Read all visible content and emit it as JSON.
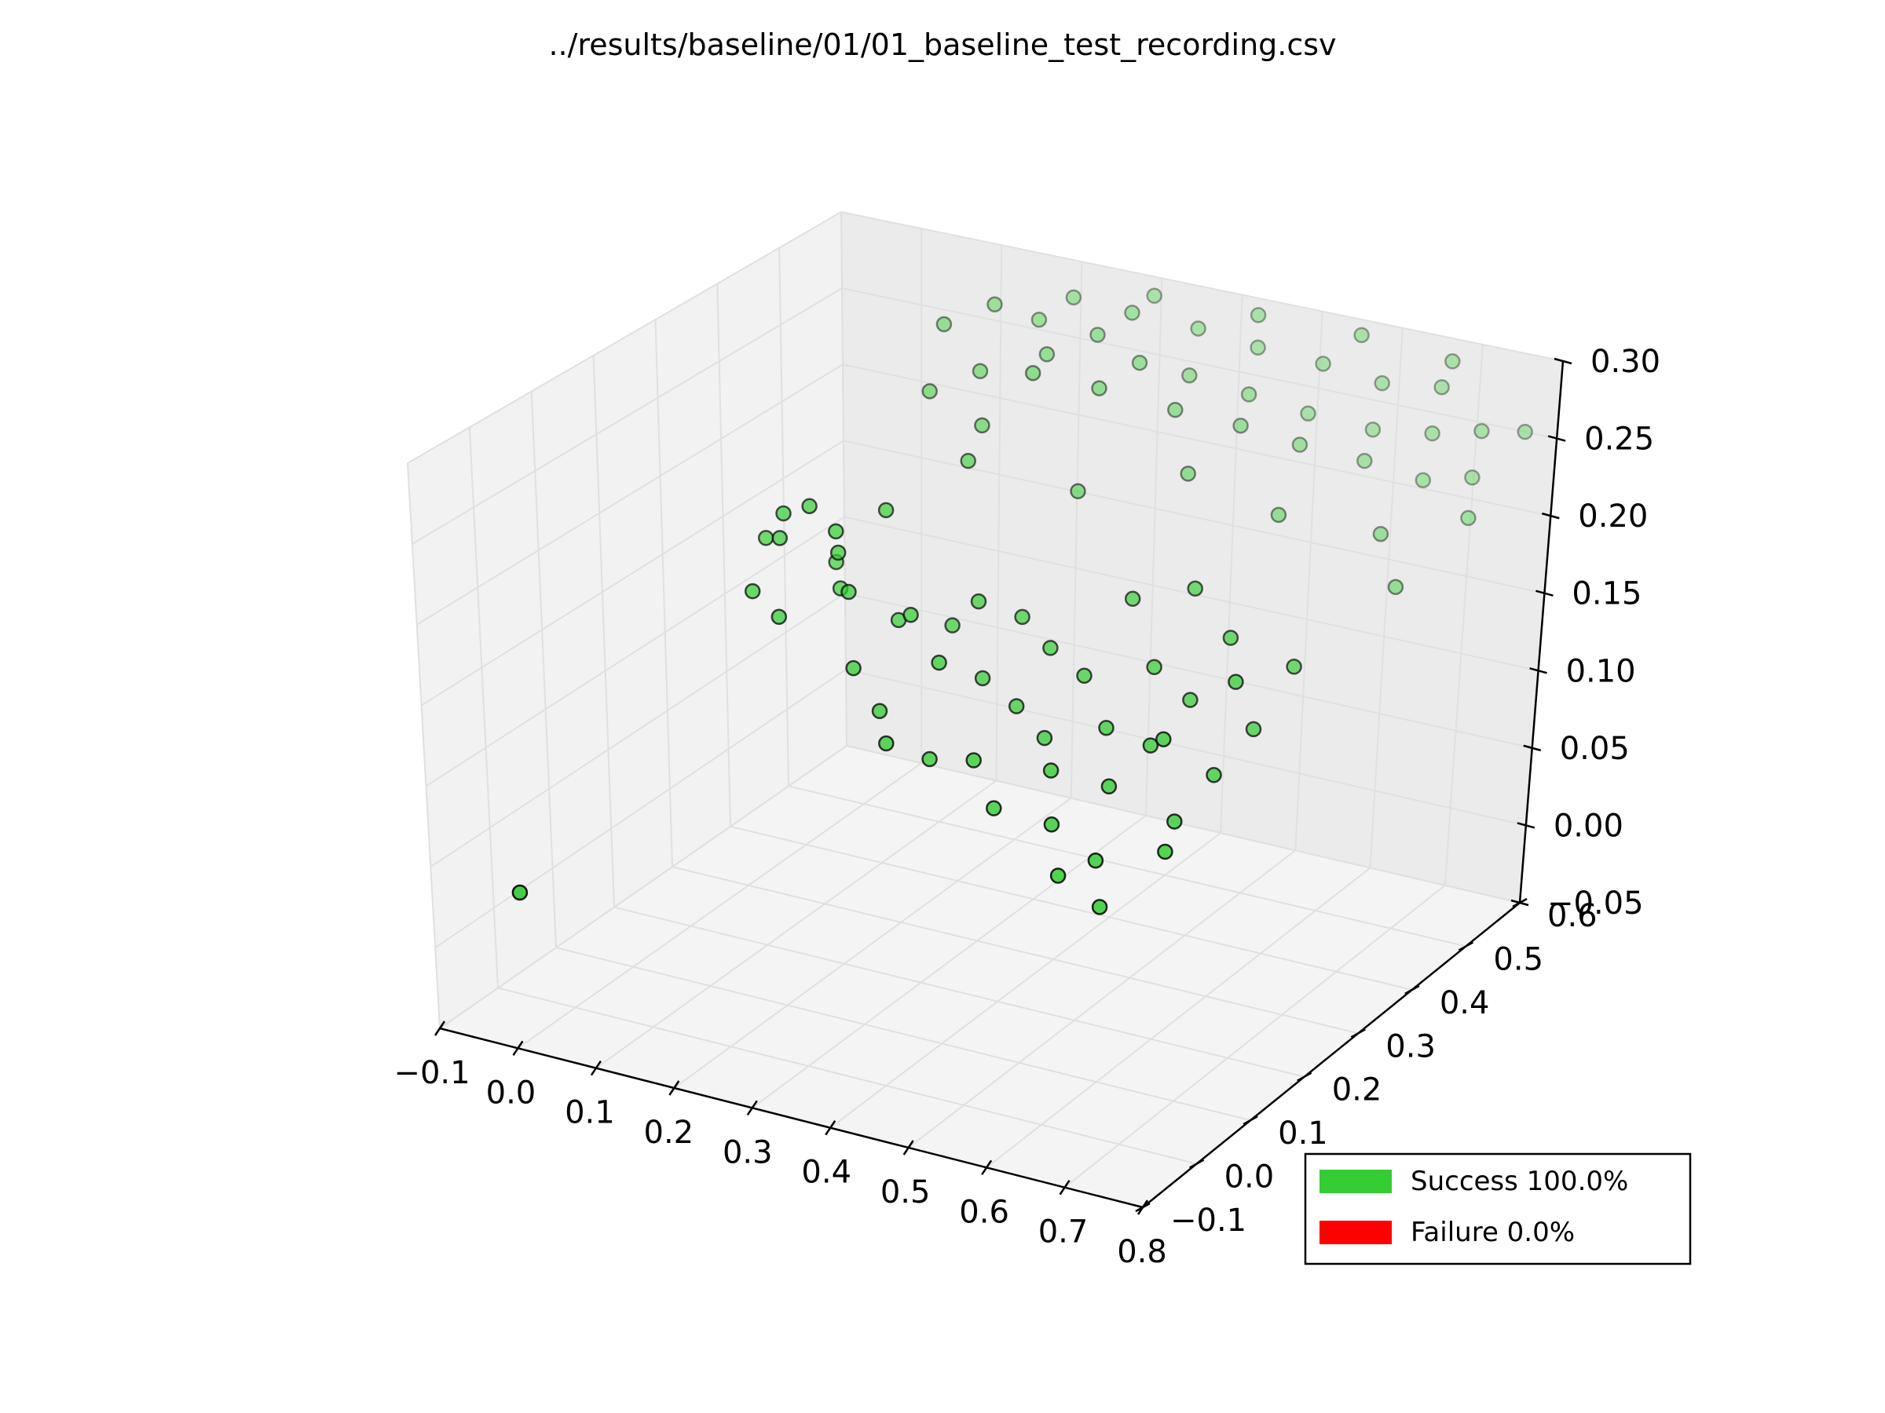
{
  "chart_data": {
    "type": "scatter",
    "projection": "3d",
    "title": "../results/baseline/01/01_baseline_test_recording.csv",
    "x_ticks": [
      "−0.1",
      "0.0",
      "0.1",
      "0.2",
      "0.3",
      "0.4",
      "0.5",
      "0.6",
      "0.7",
      "0.8"
    ],
    "y_ticks": [
      "−0.1",
      "0.0",
      "0.1",
      "0.2",
      "0.3",
      "0.4",
      "0.5",
      "0.6"
    ],
    "z_ticks": [
      "−0.05",
      "0.00",
      "0.05",
      "0.10",
      "0.15",
      "0.20",
      "0.25",
      "0.30"
    ],
    "xlim": [
      -0.1,
      0.8
    ],
    "ylim": [
      -0.1,
      0.6
    ],
    "zlim": [
      -0.05,
      0.3
    ],
    "grid": true,
    "point_color": "#33cc33",
    "legend": {
      "placement": "lower-right",
      "entries": [
        {
          "label": "Success 100.0%",
          "color": "#33cc33"
        },
        {
          "label": "Failure 0.0%",
          "color": "#ff0000"
        }
      ]
    },
    "points": [
      [
        -0.05,
        -0.02,
        0.02
      ],
      [
        0.13,
        0.2,
        0.22
      ],
      [
        0.17,
        0.19,
        0.23
      ],
      [
        0.21,
        0.18,
        0.22
      ],
      [
        0.25,
        0.21,
        0.23
      ],
      [
        0.1,
        0.21,
        0.2
      ],
      [
        0.14,
        0.18,
        0.21
      ],
      [
        0.18,
        0.22,
        0.19
      ],
      [
        0.22,
        0.17,
        0.21
      ],
      [
        0.12,
        0.16,
        0.18
      ],
      [
        0.16,
        0.15,
        0.17
      ],
      [
        0.2,
        0.2,
        0.18
      ],
      [
        0.24,
        0.16,
        0.19
      ],
      [
        0.28,
        0.19,
        0.17
      ],
      [
        0.26,
        0.14,
        0.15
      ],
      [
        0.31,
        0.17,
        0.18
      ],
      [
        0.34,
        0.2,
        0.17
      ],
      [
        0.3,
        0.13,
        0.13
      ],
      [
        0.36,
        0.15,
        0.16
      ],
      [
        0.38,
        0.19,
        0.19
      ],
      [
        0.33,
        0.1,
        0.12
      ],
      [
        0.4,
        0.17,
        0.15
      ],
      [
        0.42,
        0.21,
        0.18
      ],
      [
        0.37,
        0.12,
        0.11
      ],
      [
        0.45,
        0.16,
        0.14
      ],
      [
        0.47,
        0.19,
        0.17
      ],
      [
        0.44,
        0.1,
        0.12
      ],
      [
        0.5,
        0.14,
        0.13
      ],
      [
        0.52,
        0.18,
        0.16
      ],
      [
        0.55,
        0.22,
        0.2
      ],
      [
        0.48,
        0.08,
        0.1
      ],
      [
        0.53,
        0.11,
        0.12
      ],
      [
        0.57,
        0.15,
        0.14
      ],
      [
        0.6,
        0.19,
        0.17
      ],
      [
        0.62,
        0.23,
        0.21
      ],
      [
        0.56,
        0.07,
        0.1
      ],
      [
        0.61,
        0.1,
        0.12
      ],
      [
        0.64,
        0.13,
        0.14
      ],
      [
        0.66,
        0.17,
        0.16
      ],
      [
        0.68,
        0.21,
        0.19
      ],
      [
        0.63,
        0.05,
        0.09
      ],
      [
        0.7,
        0.09,
        0.11
      ],
      [
        0.72,
        0.13,
        0.13
      ],
      [
        0.74,
        0.17,
        0.15
      ],
      [
        0.76,
        0.21,
        0.18
      ],
      [
        0.59,
        0.04,
        0.08
      ],
      [
        0.65,
        0.03,
        0.07
      ],
      [
        0.71,
        0.06,
        0.1
      ],
      [
        0.67,
        0.11,
        0.15
      ],
      [
        0.73,
        0.15,
        0.18
      ],
      [
        0.2,
        0.35,
        0.27
      ],
      [
        0.24,
        0.38,
        0.28
      ],
      [
        0.28,
        0.33,
        0.26
      ],
      [
        0.32,
        0.36,
        0.29
      ],
      [
        0.18,
        0.4,
        0.3
      ],
      [
        0.22,
        0.43,
        0.31
      ],
      [
        0.26,
        0.45,
        0.3
      ],
      [
        0.3,
        0.41,
        0.29
      ],
      [
        0.34,
        0.44,
        0.3
      ],
      [
        0.38,
        0.39,
        0.28
      ],
      [
        0.36,
        0.47,
        0.31
      ],
      [
        0.4,
        0.43,
        0.29
      ],
      [
        0.42,
        0.5,
        0.3
      ],
      [
        0.44,
        0.46,
        0.28
      ],
      [
        0.46,
        0.41,
        0.27
      ],
      [
        0.48,
        0.52,
        0.29
      ],
      [
        0.5,
        0.48,
        0.27
      ],
      [
        0.52,
        0.44,
        0.26
      ],
      [
        0.54,
        0.55,
        0.28
      ],
      [
        0.56,
        0.5,
        0.26
      ],
      [
        0.58,
        0.46,
        0.25
      ],
      [
        0.6,
        0.57,
        0.27
      ],
      [
        0.62,
        0.53,
        0.25
      ],
      [
        0.64,
        0.49,
        0.24
      ],
      [
        0.66,
        0.59,
        0.27
      ],
      [
        0.68,
        0.55,
        0.25
      ],
      [
        0.7,
        0.51,
        0.23
      ],
      [
        0.72,
        0.58,
        0.25
      ],
      [
        0.74,
        0.54,
        0.23
      ],
      [
        0.76,
        0.6,
        0.25
      ],
      [
        0.35,
        0.52,
        0.31
      ],
      [
        0.45,
        0.56,
        0.3
      ],
      [
        0.55,
        0.6,
        0.29
      ],
      [
        0.65,
        0.62,
        0.28
      ],
      [
        0.28,
        0.48,
        0.31
      ],
      [
        0.5,
        0.38,
        0.24
      ],
      [
        0.4,
        0.33,
        0.23
      ],
      [
        0.6,
        0.4,
        0.22
      ],
      [
        0.7,
        0.44,
        0.21
      ],
      [
        0.3,
        0.28,
        0.25
      ],
      [
        0.78,
        0.48,
        0.22
      ],
      [
        0.75,
        0.4,
        0.19
      ]
    ]
  }
}
